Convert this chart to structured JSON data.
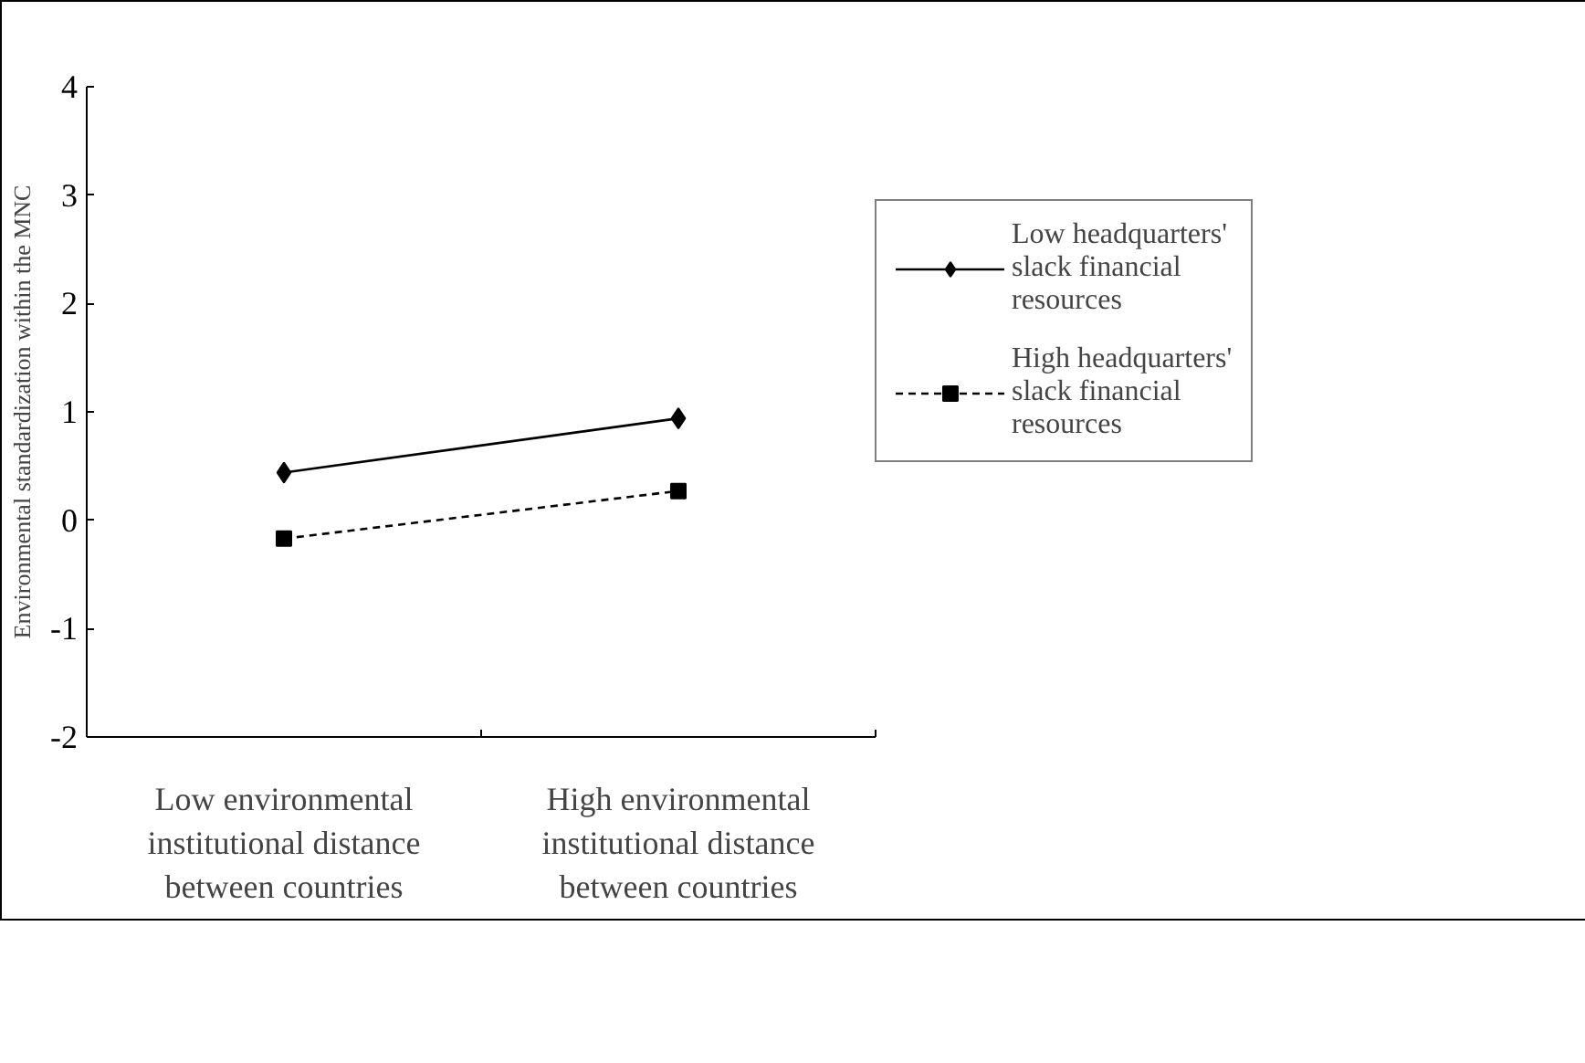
{
  "chart_data": {
    "type": "line",
    "ylabel": "Environmental standardization within the MNC",
    "categories": [
      "Low environmental institutional distance between countries",
      "High environmental institutional distance between countries"
    ],
    "ylim": [
      -2,
      4
    ],
    "yticks": [
      -2,
      -1,
      0,
      1,
      2,
      3,
      4
    ],
    "grid": false,
    "legend": "right",
    "series": [
      {
        "name": "Low headquarters' slack financial resources",
        "color": "#000000",
        "marker": "diamond",
        "line_style": "solid",
        "values": [
          0.44,
          0.94
        ]
      },
      {
        "name": "High headquarters' slack financial resources",
        "color": "#000000",
        "marker": "square",
        "line_style": "dashed",
        "values": [
          -0.17,
          0.27
        ]
      }
    ]
  }
}
